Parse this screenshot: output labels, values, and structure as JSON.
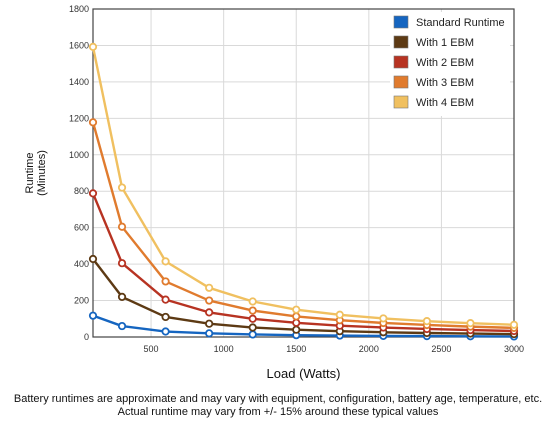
{
  "chart_data": {
    "type": "line",
    "xlabel": "Load (Watts)",
    "ylabel": [
      "Runtime",
      "(Minutes)"
    ],
    "xlim": [
      100,
      3000
    ],
    "ylim": [
      0,
      1800
    ],
    "xticks": [
      500,
      1000,
      1500,
      2000,
      2500,
      3000
    ],
    "yticks": [
      0,
      200,
      400,
      600,
      800,
      1000,
      1200,
      1400,
      1600,
      1800
    ],
    "grid": true,
    "legend_position": "top-right",
    "x": [
      100,
      300,
      600,
      900,
      1200,
      1500,
      1800,
      2100,
      2400,
      2700,
      3000
    ],
    "series": [
      {
        "name": "Standard Runtime",
        "color": "#1565c0",
        "legend_color": "#1565c0",
        "values": [
          117,
          60,
          30,
          20,
          14,
          10,
          8,
          6,
          5,
          4,
          3
        ]
      },
      {
        "name": "With 1 EBM",
        "color": "#5d3a14",
        "legend_color": "#5d3a14",
        "values": [
          428,
          220,
          110,
          73,
          52,
          40,
          32,
          26,
          22,
          19,
          16
        ]
      },
      {
        "name": "With 2 EBM",
        "color": "#b73322",
        "legend_color": "#b73322",
        "values": [
          788,
          405,
          205,
          135,
          100,
          78,
          62,
          52,
          44,
          38,
          33
        ]
      },
      {
        "name": "With 3 EBM",
        "color": "#e07b2e",
        "legend_color": "#e07b2e",
        "values": [
          1178,
          605,
          305,
          200,
          145,
          113,
          92,
          77,
          66,
          57,
          50
        ]
      },
      {
        "name": "With 4 EBM",
        "color": "#f0c060",
        "legend_color": "#f0c060",
        "values": [
          1592,
          820,
          415,
          270,
          195,
          150,
          122,
          102,
          87,
          76,
          67
        ]
      }
    ]
  },
  "footnote": {
    "line1": "Battery runtimes are approximate and may vary with equipment, configuration, battery age, temperature, etc.",
    "line2": "Actual runtime may vary from +/- 15% around these typical values"
  }
}
